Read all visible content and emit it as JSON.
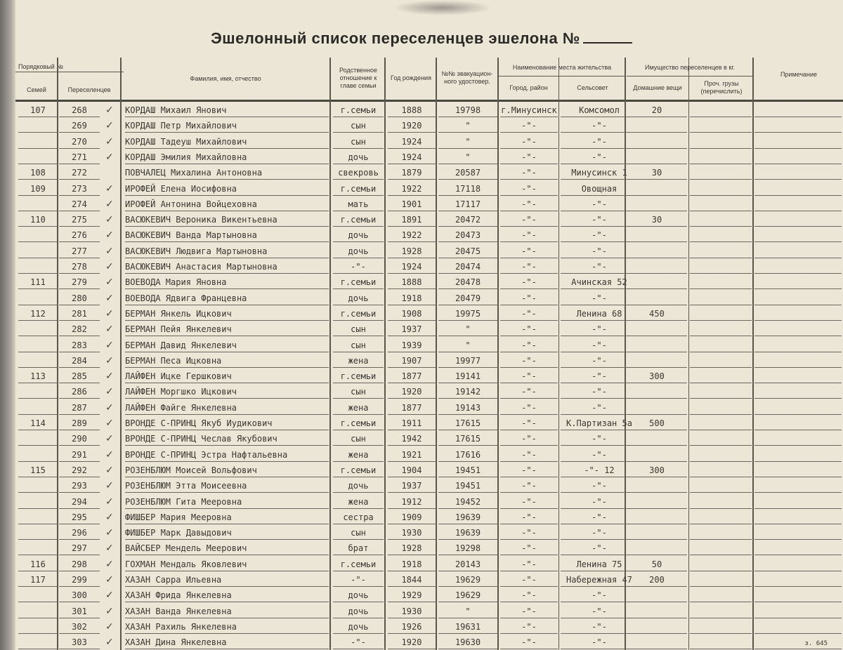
{
  "title": "Эшелонный список переселенцев эшелона №",
  "headers": {
    "serial": "Порядковый №",
    "family": "Семей",
    "settlers": "Переселенцев",
    "name": "Фамилия, имя, отчество",
    "relation": "Родственное отношение к главе семьи",
    "year": "Год рождения",
    "evac": "№№ эвакуацион-ного удостовер.",
    "residence": "Наименование места жительства",
    "city": "Город, район",
    "selsovet": "Сельсовет",
    "property": "Имущество переселенцев в кг.",
    "household": "Домашние вещи",
    "other": "Проч. грузы (перечислить)",
    "note": "Примечание"
  },
  "rows": [
    {
      "family": "107",
      "num": "268",
      "check": true,
      "name": "КОРДАШ Михаил Янович",
      "rel": "г.семьи",
      "year": "1888",
      "evac": "19798",
      "city": "г.Минусинск",
      "sel": "Комсомол",
      "goods": "20"
    },
    {
      "family": "",
      "num": "269",
      "check": true,
      "name": "КОРДАШ Петр Михайлович",
      "rel": "сын",
      "year": "1920",
      "evac": "\"",
      "city": "-\"-",
      "sel": "-\"-",
      "goods": ""
    },
    {
      "family": "",
      "num": "270",
      "check": true,
      "name": "КОРДАШ Тадеуш Михайлович",
      "rel": "сын",
      "year": "1924",
      "evac": "\"",
      "city": "-\"-",
      "sel": "-\"-",
      "goods": ""
    },
    {
      "family": "",
      "num": "271",
      "check": true,
      "name": "КОРДАШ Эмилия Михайловна",
      "rel": "дочь",
      "year": "1924",
      "evac": "\"",
      "city": "-\"-",
      "sel": "-\"-",
      "goods": ""
    },
    {
      "family": "108",
      "num": "272",
      "check": false,
      "name": "ПОВЧАЛЕЦ Михалина Антоновна",
      "rel": "свекровь",
      "year": "1879",
      "evac": "20587",
      "city": "-\"-",
      "sel": "Минусинск 1",
      "goods": "30"
    },
    {
      "family": "109",
      "num": "273",
      "check": true,
      "name": "ИРОФЕЙ Елена Иосифовна",
      "rel": "г.семьи",
      "year": "1922",
      "evac": "17118",
      "city": "-\"-",
      "sel": "Овощная",
      "goods": ""
    },
    {
      "family": "",
      "num": "274",
      "check": true,
      "name": "ИРОФЕЙ Антонина Войцеховна",
      "rel": "мать",
      "year": "1901",
      "evac": "17117",
      "city": "-\"-",
      "sel": "-\"-",
      "goods": ""
    },
    {
      "family": "110",
      "num": "275",
      "check": true,
      "name": "ВАСЮКЕВИЧ Вероника Викентьевна",
      "rel": "г.семьи",
      "year": "1891",
      "evac": "20472",
      "city": "-\"-",
      "sel": "-\"-",
      "goods": "30"
    },
    {
      "family": "",
      "num": "276",
      "check": true,
      "name": "ВАСЮКЕВИЧ Ванда Мартыновна",
      "rel": "дочь",
      "year": "1922",
      "evac": "20473",
      "city": "-\"-",
      "sel": "-\"-",
      "goods": ""
    },
    {
      "family": "",
      "num": "277",
      "check": true,
      "name": "ВАСЮКЕВИЧ Людвига Мартыновна",
      "rel": "дочь",
      "year": "1928",
      "evac": "20475",
      "city": "-\"-",
      "sel": "-\"-",
      "goods": ""
    },
    {
      "family": "",
      "num": "278",
      "check": true,
      "name": "ВАСЮКЕВИЧ Анастасия Мартыновна",
      "rel": "-\"-",
      "year": "1924",
      "evac": "20474",
      "city": "-\"-",
      "sel": "-\"-",
      "goods": ""
    },
    {
      "family": "111",
      "num": "279",
      "check": true,
      "name": "ВОЕВОДА Мария Яновна",
      "rel": "г.семьи",
      "year": "1888",
      "evac": "20478",
      "city": "-\"-",
      "sel": "Ачинская 52",
      "goods": ""
    },
    {
      "family": "",
      "num": "280",
      "check": true,
      "name": "ВОЕВОДА Ядвига Францевна",
      "rel": "дочь",
      "year": "1918",
      "evac": "20479",
      "city": "-\"-",
      "sel": "-\"-",
      "goods": ""
    },
    {
      "family": "112",
      "num": "281",
      "check": true,
      "name": "БЕРМАН Янкель Ицкович",
      "rel": "г.семьи",
      "year": "1908",
      "evac": "19975",
      "city": "-\"-",
      "sel": "Ленина 68",
      "goods": "450"
    },
    {
      "family": "",
      "num": "282",
      "check": true,
      "name": "БЕРМАН Пейя Янкелевич",
      "rel": "сын",
      "year": "1937",
      "evac": "\"",
      "city": "-\"-",
      "sel": "-\"-",
      "goods": ""
    },
    {
      "family": "",
      "num": "283",
      "check": true,
      "name": "БЕРМАН Давид Янкелевич",
      "rel": "сын",
      "year": "1939",
      "evac": "\"",
      "city": "-\"-",
      "sel": "-\"-",
      "goods": ""
    },
    {
      "family": "",
      "num": "284",
      "check": true,
      "name": "БЕРМАН Песа Ицковна",
      "rel": "жена",
      "year": "1907",
      "evac": "19977",
      "city": "-\"-",
      "sel": "-\"-",
      "goods": ""
    },
    {
      "family": "113",
      "num": "285",
      "check": true,
      "name": "ЛАЙФЕН Ицке Гершкович",
      "rel": "г.семьи",
      "year": "1877",
      "evac": "19141",
      "city": "-\"-",
      "sel": "-\"-",
      "goods": "300"
    },
    {
      "family": "",
      "num": "286",
      "check": true,
      "name": "ЛАЙФЕН Моргшко Ицкович",
      "rel": "сын",
      "year": "1920",
      "evac": "19142",
      "city": "-\"-",
      "sel": "-\"-",
      "goods": ""
    },
    {
      "family": "",
      "num": "287",
      "check": true,
      "name": "ЛАЙФЕН Файге Янкелевна",
      "rel": "жена",
      "year": "1877",
      "evac": "19143",
      "city": "-\"-",
      "sel": "-\"-",
      "goods": ""
    },
    {
      "family": "114",
      "num": "289",
      "check": true,
      "name": "ВРОНДЕ С-ПРИНЦ Якуб Иудикович",
      "rel": "г.семьи",
      "year": "1911",
      "evac": "17615",
      "city": "-\"-",
      "sel": "К.Партизан 5а",
      "goods": "500"
    },
    {
      "family": "",
      "num": "290",
      "check": true,
      "name": "ВРОНДЕ С-ПРИНЦ Чеслав Якубович",
      "rel": "сын",
      "year": "1942",
      "evac": "17615",
      "city": "-\"-",
      "sel": "-\"-",
      "goods": ""
    },
    {
      "family": "",
      "num": "291",
      "check": true,
      "name": "ВРОНДЕ С-ПРИНЦ Эстра Нафтальевна",
      "rel": "жена",
      "year": "1921",
      "evac": "17616",
      "city": "-\"-",
      "sel": "-\"-",
      "goods": ""
    },
    {
      "family": "115",
      "num": "292",
      "check": true,
      "name": "РОЗЕНБЛЮМ Моисей Вольфович",
      "rel": "г.семьи",
      "year": "1904",
      "evac": "19451",
      "city": "-\"-",
      "sel": "-\"- 12",
      "goods": "300"
    },
    {
      "family": "",
      "num": "293",
      "check": true,
      "name": "РОЗЕНБЛЮМ Этта Моисеевна",
      "rel": "дочь",
      "year": "1937",
      "evac": "19451",
      "city": "-\"-",
      "sel": "-\"-",
      "goods": ""
    },
    {
      "family": "",
      "num": "294",
      "check": true,
      "name": "РОЗЕНБЛЮМ Гита Мееровна",
      "rel": "жена",
      "year": "1912",
      "evac": "19452",
      "city": "-\"-",
      "sel": "-\"-",
      "goods": ""
    },
    {
      "family": "",
      "num": "295",
      "check": true,
      "name": "ФИШБЕР Мария Мееровна",
      "rel": "сестра",
      "year": "1909",
      "evac": "19639",
      "city": "-\"-",
      "sel": "-\"-",
      "goods": ""
    },
    {
      "family": "",
      "num": "296",
      "check": true,
      "name": "ФИШБЕР Марк Давыдович",
      "rel": "сын",
      "year": "1930",
      "evac": "19639",
      "city": "-\"-",
      "sel": "-\"-",
      "goods": ""
    },
    {
      "family": "",
      "num": "297",
      "check": true,
      "name": "ВАЙСБЕР Мендель Меерович",
      "rel": "брат",
      "year": "1928",
      "evac": "19298",
      "city": "-\"-",
      "sel": "-\"-",
      "goods": ""
    },
    {
      "family": "116",
      "num": "298",
      "check": true,
      "name": "ГОХМАН Мендаль Яковлевич",
      "rel": "г.семьи",
      "year": "1918",
      "evac": "20143",
      "city": "-\"-",
      "sel": "Ленина 75",
      "goods": "50"
    },
    {
      "family": "117",
      "num": "299",
      "check": true,
      "name": "ХАЗАН Сарра Ильевна",
      "rel": "-\"-",
      "year": "1844",
      "evac": "19629",
      "city": "-\"-",
      "sel": "Набережная 47",
      "goods": "200"
    },
    {
      "family": "",
      "num": "300",
      "check": true,
      "name": "ХАЗАН Фрида Янкелевна",
      "rel": "дочь",
      "year": "1929",
      "evac": "19629",
      "city": "-\"-",
      "sel": "-\"-",
      "goods": ""
    },
    {
      "family": "",
      "num": "301",
      "check": true,
      "name": "ХАЗАН Ванда Янкелевна",
      "rel": "дочь",
      "year": "1930",
      "evac": "\"",
      "city": "-\"-",
      "sel": "-\"-",
      "goods": ""
    },
    {
      "family": "",
      "num": "302",
      "check": true,
      "name": "ХАЗАН Рахиль Янкелевна",
      "rel": "дочь",
      "year": "1926",
      "evac": "19631",
      "city": "-\"-",
      "sel": "-\"-",
      "goods": ""
    },
    {
      "family": "",
      "num": "303",
      "check": true,
      "name": "ХАЗАН Дина Янкелевна",
      "rel": "-\"-",
      "year": "1920",
      "evac": "19630",
      "city": "-\"-",
      "sel": "-\"-",
      "goods": ""
    }
  ],
  "footer": "з. 645"
}
